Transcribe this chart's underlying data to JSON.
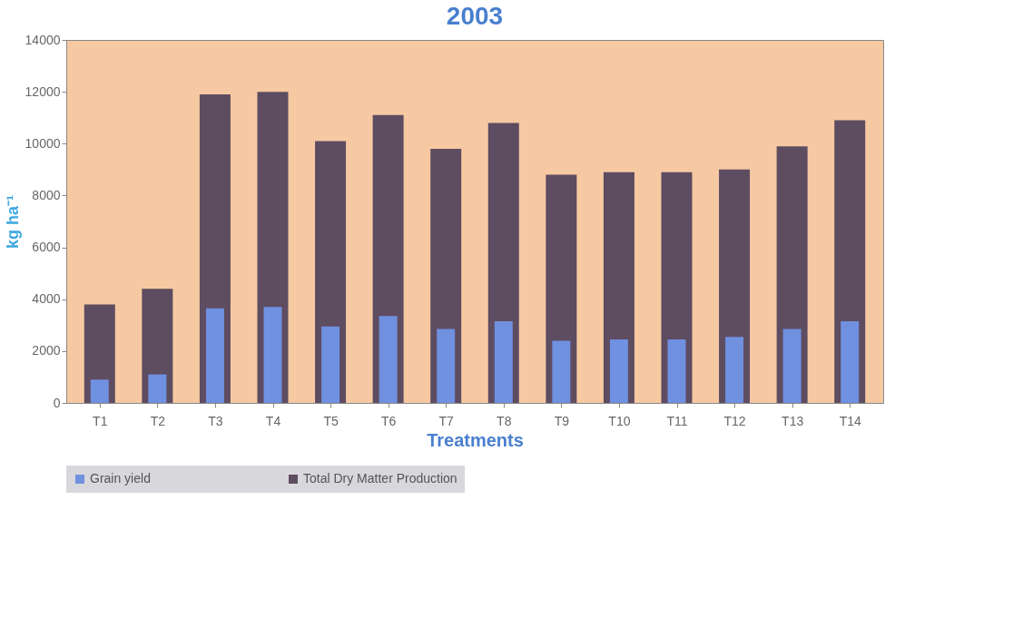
{
  "chart_data": {
    "type": "bar",
    "title": "2003",
    "xlabel": "Treatments",
    "ylabel": "kg ha⁻¹",
    "categories": [
      "T1",
      "T2",
      "T3",
      "T4",
      "T5",
      "T6",
      "T7",
      "T8",
      "T9",
      "T10",
      "T11",
      "T12",
      "T13",
      "T14"
    ],
    "series": [
      {
        "name": "Grain yield",
        "color": "#7090e0",
        "values": [
          900,
          1100,
          3650,
          3700,
          2950,
          3350,
          2850,
          3150,
          2400,
          2450,
          2450,
          2550,
          2850,
          3150
        ]
      },
      {
        "name": "Total Dry Matter Production",
        "color": "#5e4c60",
        "values": [
          3800,
          4400,
          11900,
          12000,
          10100,
          11100,
          9800,
          10800,
          8800,
          8900,
          8900,
          9000,
          9900,
          10900
        ]
      }
    ],
    "ylim": [
      0,
      14000
    ],
    "yticks": [
      0,
      2000,
      4000,
      6000,
      8000,
      10000,
      12000,
      14000
    ],
    "grid": false,
    "legend": "bottom"
  }
}
